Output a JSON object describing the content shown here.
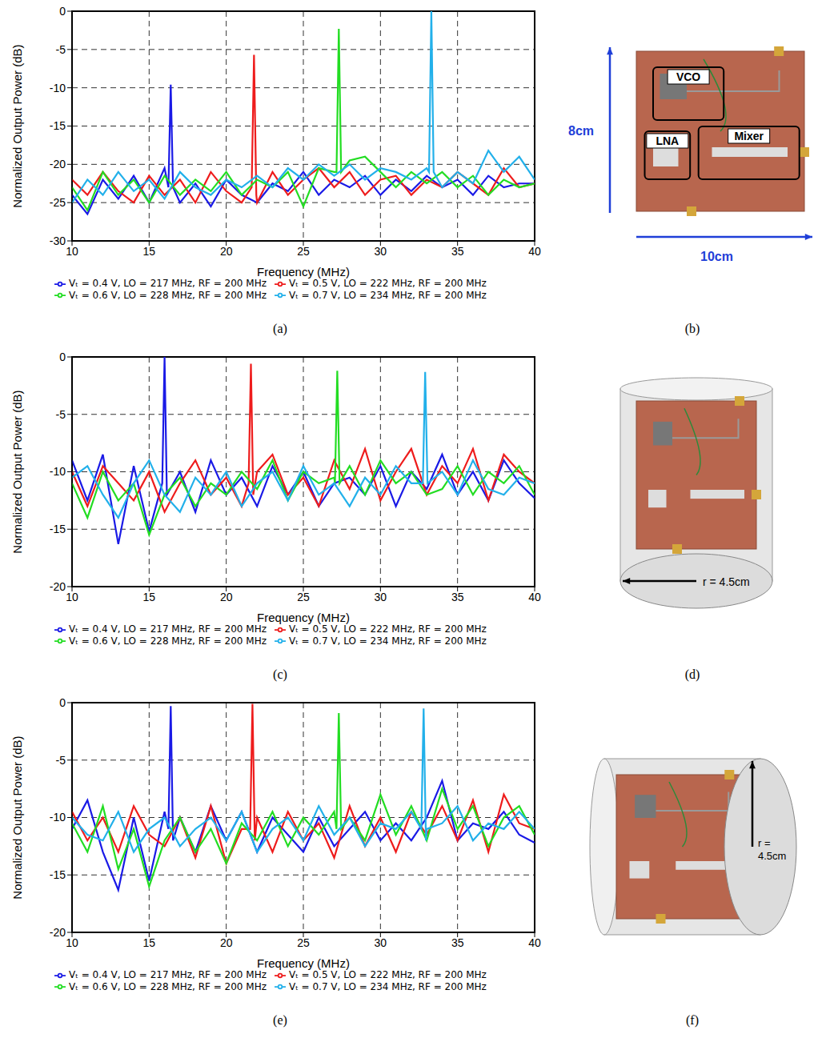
{
  "chart_data": [
    {
      "panel": "(a)",
      "type": "line",
      "x_label": "Frequency (MHz)",
      "y_label": "Normalized Output Power (dB)",
      "xlim": [
        10,
        40
      ],
      "xticks": [
        10,
        15,
        20,
        25,
        30,
        35,
        40
      ],
      "ylim": [
        -30,
        0
      ],
      "yticks": [
        -30,
        -25,
        -20,
        -15,
        -10,
        -5,
        0
      ],
      "grid": true,
      "legend": "bottom",
      "series": [
        {
          "name": "Vₜ = 0.4 V, LO = 217 MHz, RF = 200 MHz",
          "color": "#1a1ae6",
          "x": [
            10,
            11,
            12,
            13,
            14,
            15,
            16,
            16.25,
            16.4,
            16.55,
            17,
            18,
            19,
            20,
            21,
            22,
            23,
            24,
            25,
            26,
            27,
            28,
            29,
            30,
            31,
            32,
            33,
            34,
            35,
            36,
            37,
            38,
            39,
            40
          ],
          "values": [
            -24,
            -26.5,
            -22,
            -24.5,
            -21.5,
            -25,
            -20.5,
            -23,
            -9.6,
            -23,
            -25,
            -22.5,
            -25.5,
            -22,
            -24,
            -25,
            -22.5,
            -23.5,
            -21,
            -24,
            -22,
            -23,
            -21.5,
            -24,
            -22,
            -23.5,
            -21.5,
            -23,
            -22,
            -24,
            -21.5,
            -23,
            -22.5,
            -22.5
          ]
        },
        {
          "name": "Vₜ = 0.5 V, LO = 222 MHz, RF = 200 MHz",
          "color": "#ee1c1c",
          "x": [
            10,
            11,
            12,
            13,
            14,
            15,
            16,
            17,
            18,
            19,
            20,
            21,
            21.65,
            21.8,
            21.95,
            22,
            23,
            24,
            25,
            26,
            27,
            28,
            29,
            30,
            31,
            32,
            33,
            34,
            35,
            36,
            37,
            38,
            39,
            40
          ],
          "values": [
            -22,
            -24,
            -21,
            -23.5,
            -25,
            -21.5,
            -24,
            -22,
            -25,
            -21,
            -23.5,
            -25,
            -23,
            -5.7,
            -24,
            -25,
            -21,
            -24,
            -22,
            -20.5,
            -23,
            -21,
            -24,
            -22,
            -21.5,
            -24,
            -22,
            -23,
            -21,
            -22.5,
            -24,
            -20.5,
            -23,
            -22.5
          ]
        },
        {
          "name": "Vₜ = 0.6 V, LO = 228 MHz, RF = 200 MHz",
          "color": "#22dd22",
          "x": [
            10,
            11,
            12,
            13,
            14,
            15,
            16,
            17,
            18,
            19,
            20,
            21,
            22,
            23,
            24,
            25,
            26,
            27,
            27.15,
            27.3,
            27.45,
            28,
            29,
            30,
            31,
            32,
            33,
            34,
            35,
            36,
            37,
            38,
            39,
            40
          ],
          "values": [
            -23,
            -26,
            -21,
            -24,
            -22,
            -25,
            -21.5,
            -24,
            -22,
            -23.5,
            -21,
            -24,
            -22,
            -23,
            -21,
            -25.5,
            -20.5,
            -21,
            -21,
            -2.3,
            -21,
            -19.5,
            -19,
            -21,
            -23,
            -21,
            -22.5,
            -21,
            -23,
            -21.5,
            -24,
            -22,
            -23,
            -22.5
          ]
        },
        {
          "name": "Vₜ = 0.7 V, LO = 234 MHz, RF = 200 MHz",
          "color": "#22b0ea",
          "x": [
            10,
            11,
            12,
            13,
            14,
            15,
            16,
            17,
            18,
            19,
            20,
            21,
            22,
            23,
            24,
            25,
            26,
            27,
            28,
            29,
            30,
            31,
            32,
            33,
            33.15,
            33.3,
            33.45,
            34,
            35,
            36,
            37,
            38,
            39,
            40
          ],
          "values": [
            -25,
            -22,
            -24,
            -21,
            -23.5,
            -22,
            -24.5,
            -21,
            -23,
            -24,
            -22,
            -23,
            -21.5,
            -23,
            -20.5,
            -22,
            -20,
            -21.5,
            -20,
            -22,
            -20.5,
            -21,
            -22,
            -20.5,
            -21,
            0,
            -21,
            -23,
            -21,
            -22.5,
            -18.2,
            -21,
            -19,
            -22
          ]
        }
      ]
    },
    {
      "panel": "(c)",
      "type": "line",
      "x_label": "Frequency (MHz)",
      "y_label": "Normalized Output Power (dB)",
      "xlim": [
        10,
        40
      ],
      "xticks": [
        10,
        15,
        20,
        25,
        30,
        35,
        40
      ],
      "ylim": [
        -20,
        0
      ],
      "yticks": [
        -20,
        -15,
        -10,
        -5,
        0
      ],
      "grid": true,
      "legend": "bottom",
      "series": [
        {
          "name": "Vₜ = 0.4 V, LO = 217 MHz, RF = 200 MHz",
          "color": "#1a1ae6",
          "x": [
            10,
            11,
            12,
            13,
            14,
            15,
            15.85,
            16,
            16.15,
            17,
            18,
            19,
            20,
            21,
            22,
            23,
            24,
            25,
            26,
            27,
            28,
            29,
            30,
            31,
            32,
            33,
            34,
            35,
            36,
            37,
            38,
            39,
            40
          ],
          "values": [
            -9,
            -12.5,
            -8.5,
            -16.3,
            -9.5,
            -15.2,
            -11,
            0,
            -12,
            -10,
            -13.5,
            -9,
            -12,
            -10.5,
            -13,
            -9.5,
            -12,
            -10,
            -13,
            -11,
            -10.5,
            -12,
            -9.5,
            -13,
            -10,
            -11.5,
            -8.5,
            -12,
            -10,
            -12.5,
            -9,
            -11,
            -12.3
          ]
        },
        {
          "name": "Vₜ = 0.5 V, LO = 222 MHz, RF = 200 MHz",
          "color": "#ee1c1c",
          "x": [
            10,
            11,
            12,
            13,
            14,
            15,
            16,
            17,
            18,
            19,
            20,
            21,
            21.45,
            21.6,
            21.75,
            22,
            23,
            24,
            25,
            26,
            27,
            28,
            29,
            30,
            31,
            32,
            33,
            34,
            35,
            36,
            37,
            38,
            39,
            40
          ],
          "values": [
            -10,
            -13,
            -9.5,
            -11,
            -12.5,
            -10,
            -13.5,
            -11,
            -9,
            -12,
            -10.5,
            -13,
            -11,
            -0.6,
            -12,
            -10,
            -8.5,
            -12,
            -10.5,
            -13,
            -9,
            -11.5,
            -8,
            -12.5,
            -10,
            -8,
            -12,
            -9.5,
            -11,
            -8,
            -12.5,
            -8.5,
            -10,
            -11
          ]
        },
        {
          "name": "Vₜ = 0.6 V, LO = 228 MHz, RF = 200 MHz",
          "color": "#22dd22",
          "x": [
            10,
            11,
            12,
            13,
            14,
            15,
            16,
            17,
            18,
            19,
            20,
            21,
            22,
            23,
            24,
            25,
            26,
            27,
            27.05,
            27.2,
            27.35,
            28,
            29,
            30,
            31,
            32,
            33,
            34,
            35,
            36,
            37,
            38,
            39,
            40
          ],
          "values": [
            -11,
            -14,
            -10,
            -12.5,
            -11,
            -15.5,
            -12,
            -10.5,
            -13,
            -11,
            -12,
            -10,
            -11.5,
            -9,
            -12.5,
            -10,
            -11,
            -10.5,
            -11,
            -1.2,
            -11,
            -9.5,
            -12,
            -9,
            -11,
            -10,
            -12,
            -11.5,
            -9.5,
            -12,
            -10,
            -11,
            -9.5,
            -12
          ]
        },
        {
          "name": "Vₜ = 0.7 V, LO = 234 MHz, RF = 200 MHz",
          "color": "#22b0ea",
          "x": [
            10,
            11,
            12,
            13,
            14,
            15,
            16,
            17,
            18,
            19,
            20,
            21,
            22,
            23,
            24,
            25,
            26,
            27,
            28,
            29,
            30,
            31,
            32,
            32.75,
            32.9,
            33.05,
            34,
            35,
            36,
            37,
            38,
            39,
            40
          ],
          "values": [
            -10.5,
            -9.5,
            -12,
            -14,
            -11,
            -9,
            -12,
            -13.5,
            -10.5,
            -12,
            -10,
            -13,
            -11,
            -10,
            -12.5,
            -9.5,
            -12,
            -11,
            -13,
            -10.5,
            -12,
            -9.5,
            -11,
            -11,
            -1.3,
            -11,
            -10,
            -12,
            -9,
            -11.5,
            -12,
            -10.5,
            -11
          ]
        }
      ]
    },
    {
      "panel": "(e)",
      "type": "line",
      "x_label": "Frequency (MHz)",
      "y_label": "Normalized Output Power (dB)",
      "xlim": [
        10,
        40
      ],
      "xticks": [
        10,
        15,
        20,
        25,
        30,
        35,
        40
      ],
      "ylim": [
        -20,
        0
      ],
      "yticks": [
        -20,
        -15,
        -10,
        -5,
        0
      ],
      "grid": true,
      "legend": "bottom",
      "series": [
        {
          "name": "Vₜ = 0.4 V, LO = 217 MHz, RF = 200 MHz",
          "color": "#1a1ae6",
          "x": [
            10,
            11,
            12,
            13,
            14,
            15,
            16,
            16.25,
            16.4,
            16.55,
            17,
            18,
            19,
            20,
            21,
            22,
            23,
            24,
            25,
            26,
            27,
            28,
            29,
            30,
            31,
            32,
            33,
            34,
            35,
            36,
            37,
            38,
            39,
            40
          ],
          "values": [
            -11,
            -8.5,
            -13,
            -16.3,
            -10,
            -15.5,
            -9.5,
            -11,
            -0.3,
            -12,
            -10,
            -13,
            -9,
            -12,
            -9.5,
            -13,
            -10,
            -11.5,
            -13,
            -10,
            -12.5,
            -11,
            -9.5,
            -12,
            -10.5,
            -12,
            -10,
            -6.8,
            -12,
            -10.5,
            -11,
            -9.5,
            -11.5,
            -12.2
          ]
        },
        {
          "name": "Vₜ = 0.5 V, LO = 222 MHz, RF = 200 MHz",
          "color": "#ee1c1c",
          "x": [
            10,
            11,
            12,
            13,
            14,
            15,
            16,
            17,
            18,
            19,
            20,
            21,
            21.55,
            21.7,
            21.85,
            22,
            23,
            24,
            25,
            26,
            27,
            28,
            29,
            30,
            31,
            32,
            33,
            34,
            35,
            36,
            37,
            38,
            39,
            40
          ],
          "values": [
            -9.5,
            -12,
            -10,
            -13,
            -9,
            -11.5,
            -12.5,
            -10,
            -13.5,
            -9,
            -14,
            -11,
            -11,
            -0.1,
            -12,
            -10,
            -13,
            -9.5,
            -12,
            -10.5,
            -13.5,
            -9,
            -12.5,
            -10,
            -13,
            -9.5,
            -11.5,
            -9,
            -12,
            -8.5,
            -13,
            -8,
            -10.5,
            -11
          ]
        },
        {
          "name": "Vₜ = 0.6 V, LO = 228 MHz, RF = 200 MHz",
          "color": "#22dd22",
          "x": [
            10,
            11,
            12,
            13,
            14,
            15,
            16,
            17,
            18,
            19,
            20,
            21,
            22,
            23,
            24,
            25,
            26,
            27,
            27.15,
            27.3,
            27.45,
            28,
            29,
            30,
            31,
            32,
            33,
            34,
            35,
            36,
            37,
            38,
            39,
            40
          ],
          "values": [
            -10.5,
            -13,
            -9,
            -14.5,
            -11,
            -16,
            -12,
            -10,
            -13,
            -11,
            -14,
            -10.5,
            -12,
            -9.5,
            -12.5,
            -10,
            -11.5,
            -9.5,
            -11,
            -0.9,
            -11,
            -10,
            -12,
            -8,
            -11.5,
            -9,
            -12,
            -7.5,
            -11,
            -9,
            -12.5,
            -10,
            -9,
            -11.5
          ]
        },
        {
          "name": "Vₜ = 0.7 V, LO = 234 MHz, RF = 200 MHz",
          "color": "#22b0ea",
          "x": [
            10,
            11,
            12,
            13,
            14,
            15,
            16,
            17,
            18,
            19,
            20,
            21,
            22,
            23,
            24,
            25,
            26,
            27,
            28,
            29,
            30,
            31,
            32,
            32.65,
            32.8,
            32.95,
            33,
            34,
            35,
            36,
            37,
            38,
            39,
            40
          ],
          "values": [
            -10,
            -11.5,
            -12,
            -9.5,
            -13,
            -11,
            -10,
            -12.5,
            -11,
            -10,
            -12,
            -9.5,
            -13,
            -11,
            -10,
            -12,
            -9,
            -11.5,
            -10,
            -12.5,
            -10.5,
            -11,
            -9.5,
            -11,
            -0.5,
            -12,
            -11,
            -10.5,
            -9,
            -12,
            -10.5,
            -11,
            -9.5,
            -11
          ]
        }
      ]
    }
  ],
  "photos": [
    {
      "panel": "(b)",
      "labels": [
        "VCO",
        "LNA",
        "Mixer"
      ],
      "height_label": "8cm",
      "width_label": "10cm"
    },
    {
      "panel": "(d)",
      "radius_label": "r = 4.5cm"
    },
    {
      "panel": "(f)",
      "radius_label": "r = 4.5cm"
    }
  ]
}
